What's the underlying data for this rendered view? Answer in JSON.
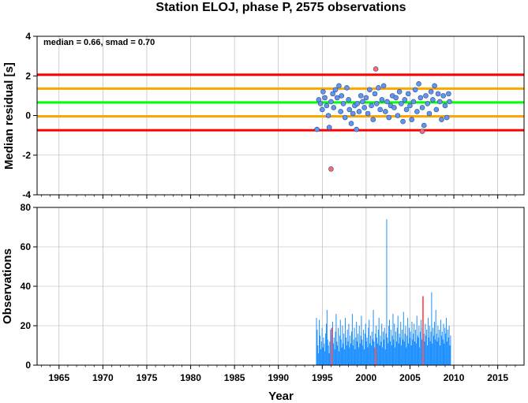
{
  "chart_data": [
    {
      "type": "scatter",
      "title": "Station ELOJ, phase P, 2575 observations",
      "ylabel": "Median residual [s]",
      "annotation": "median = 0.66, smad = 0.70",
      "xlim": [
        1962.5,
        2018.0
      ],
      "ylim": [
        -4,
        4
      ],
      "yticks": [
        -4,
        -2,
        0,
        2,
        4
      ],
      "xticks": [
        1965,
        1970,
        1975,
        1980,
        1985,
        1990,
        1995,
        2000,
        2005,
        2010,
        2015
      ],
      "grid": true,
      "reference_lines": [
        {
          "y": 2.06,
          "color": "#ff0000"
        },
        {
          "y": 1.36,
          "color": "#ffa500"
        },
        {
          "y": 0.66,
          "color": "#00ff00"
        },
        {
          "y": -0.04,
          "color": "#ffa500"
        },
        {
          "y": -0.74,
          "color": "#ff0000"
        }
      ],
      "series": [
        {
          "color": "#6495ed",
          "points": [
            [
              1994.4,
              -0.7
            ],
            [
              1994.6,
              0.8
            ],
            [
              1994.8,
              0.6
            ],
            [
              1995.0,
              0.3
            ],
            [
              1995.1,
              1.2
            ],
            [
              1995.3,
              0.9
            ],
            [
              1995.5,
              0.5
            ],
            [
              1995.7,
              0.0
            ],
            [
              1995.8,
              -0.6
            ],
            [
              1996.0,
              0.7
            ],
            [
              1996.2,
              1.1
            ],
            [
              1996.3,
              0.4
            ],
            [
              1996.5,
              1.3
            ],
            [
              1996.7,
              0.9
            ],
            [
              1996.9,
              1.5
            ],
            [
              1997.1,
              0.2
            ],
            [
              1997.2,
              1.0
            ],
            [
              1997.4,
              0.6
            ],
            [
              1997.6,
              -0.1
            ],
            [
              1997.8,
              1.4
            ],
            [
              1998.0,
              0.8
            ],
            [
              1998.1,
              0.3
            ],
            [
              1998.3,
              -0.4
            ],
            [
              1998.5,
              0.1
            ],
            [
              1998.7,
              0.5
            ],
            [
              1998.9,
              -0.7
            ],
            [
              1999.0,
              0.6
            ],
            [
              1999.2,
              0.2
            ],
            [
              1999.4,
              1.0
            ],
            [
              1999.6,
              0.7
            ],
            [
              1999.8,
              0.4
            ],
            [
              2000.0,
              0.9
            ],
            [
              2000.2,
              0.1
            ],
            [
              2000.4,
              1.3
            ],
            [
              2000.6,
              0.5
            ],
            [
              2000.8,
              -0.2
            ],
            [
              2001.0,
              1.1
            ],
            [
              2001.2,
              0.6
            ],
            [
              2001.4,
              1.4
            ],
            [
              2001.6,
              0.3
            ],
            [
              2001.8,
              0.8
            ],
            [
              2002.0,
              1.5
            ],
            [
              2002.2,
              0.2
            ],
            [
              2002.4,
              0.7
            ],
            [
              2002.6,
              -0.1
            ],
            [
              2002.8,
              0.5
            ],
            [
              2003.0,
              1.0
            ],
            [
              2003.2,
              0.4
            ],
            [
              2003.4,
              0.9
            ],
            [
              2003.6,
              0.0
            ],
            [
              2003.8,
              1.2
            ],
            [
              2004.0,
              0.6
            ],
            [
              2004.2,
              -0.3
            ],
            [
              2004.4,
              0.8
            ],
            [
              2004.6,
              0.3
            ],
            [
              2004.8,
              1.1
            ],
            [
              2005.0,
              0.5
            ],
            [
              2005.2,
              -0.2
            ],
            [
              2005.4,
              0.7
            ],
            [
              2005.6,
              1.3
            ],
            [
              2005.8,
              0.2
            ],
            [
              2006.0,
              1.6
            ],
            [
              2006.2,
              0.9
            ],
            [
              2006.4,
              0.4
            ],
            [
              2006.6,
              -0.5
            ],
            [
              2006.8,
              1.0
            ],
            [
              2007.0,
              0.6
            ],
            [
              2007.2,
              0.1
            ],
            [
              2007.4,
              1.2
            ],
            [
              2007.6,
              0.8
            ],
            [
              2007.8,
              1.5
            ],
            [
              2008.0,
              0.3
            ],
            [
              2008.2,
              1.1
            ],
            [
              2008.4,
              0.7
            ],
            [
              2008.6,
              -0.2
            ],
            [
              2008.8,
              1.0
            ],
            [
              2009.0,
              0.5
            ],
            [
              2009.2,
              -0.1
            ],
            [
              2009.4,
              1.1
            ],
            [
              2009.5,
              0.7
            ]
          ]
        },
        {
          "color": "#ff6b6b",
          "points": [
            [
              1996.0,
              -2.7
            ],
            [
              2001.1,
              2.35
            ],
            [
              2006.4,
              -0.8
            ]
          ]
        }
      ]
    },
    {
      "type": "bar",
      "xlabel": "Year",
      "ylabel": "Observations",
      "xlim": [
        1962.5,
        2018.0
      ],
      "ylim": [
        0,
        80
      ],
      "yticks": [
        0,
        20,
        40,
        60,
        80
      ],
      "xticks": [
        1965,
        1970,
        1975,
        1980,
        1985,
        1990,
        1995,
        2000,
        2005,
        2010,
        2015
      ],
      "grid": true,
      "series": [
        {
          "color": "#1e90ff",
          "x_start": 1994.3,
          "step": 0.08,
          "values": [
            24,
            18,
            10,
            6,
            23,
            15,
            8,
            12,
            19,
            9,
            14,
            11,
            7,
            16,
            21,
            28,
            13,
            10,
            6,
            12,
            18,
            15,
            9,
            22,
            11,
            14,
            8,
            17,
            26,
            12,
            10,
            19,
            7,
            15,
            23,
            13,
            9,
            20,
            11,
            16,
            8,
            24,
            14,
            10,
            18,
            12,
            21,
            9,
            15,
            11,
            17,
            26,
            10,
            13,
            19,
            8,
            14,
            22,
            12,
            16,
            9,
            20,
            11,
            15,
            25,
            13,
            10,
            18,
            8,
            16,
            21,
            12,
            14,
            9,
            19,
            23,
            11,
            15,
            10,
            17,
            13,
            28,
            12,
            9,
            16,
            20,
            14,
            11,
            18,
            24,
            10,
            15,
            12,
            21,
            9,
            17,
            13,
            19,
            8,
            16,
            74,
            14,
            11,
            20,
            23,
            12,
            18,
            10,
            15,
            26,
            13,
            21,
            9,
            17,
            12,
            19,
            25,
            11,
            16,
            14,
            22,
            10,
            18,
            13,
            27,
            12,
            16,
            20,
            9,
            15,
            24,
            11,
            19,
            14,
            17,
            10,
            22,
            13,
            16,
            21,
            12,
            18,
            11,
            25,
            15,
            14,
            20,
            9,
            17,
            23,
            13,
            19,
            11,
            16,
            12,
            21,
            15,
            18,
            10,
            24,
            14,
            20,
            12,
            17,
            37,
            11,
            19,
            15,
            22,
            13,
            28,
            16,
            12,
            20,
            14,
            18,
            10,
            23,
            15,
            17,
            13,
            21,
            11,
            19,
            16,
            24,
            12,
            18,
            14,
            20,
            10,
            15
          ]
        },
        {
          "color": "#ff5555",
          "bars": [
            [
              1996.0,
              19
            ],
            [
              2001.0,
              9
            ],
            [
              2006.4,
              35
            ]
          ]
        }
      ]
    }
  ]
}
